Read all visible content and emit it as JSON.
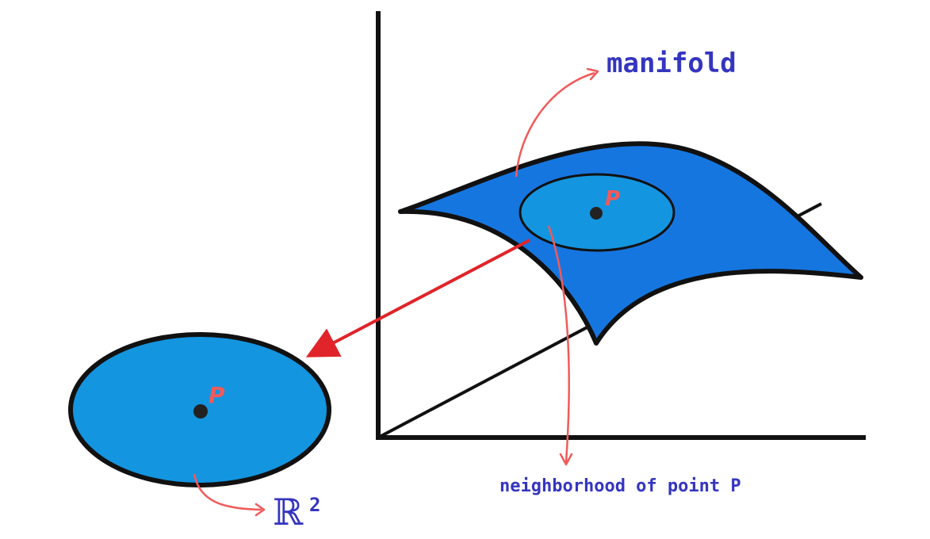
{
  "labels": {
    "manifold": "manifold",
    "neighborhood": "neighborhood of point P",
    "point_p_manifold": "P",
    "point_p_disk": "P",
    "r2_symbol": "ℝ",
    "r2_exponent": "2"
  },
  "colors": {
    "label_blue": "#3535c0",
    "annotation_red": "#f25a5a",
    "map_arrow_red": "#e0242a",
    "surface_blue": "#1676e0",
    "neighborhood_blue": "#1495df",
    "disk_blue": "#1495df",
    "outline": "#111111"
  }
}
